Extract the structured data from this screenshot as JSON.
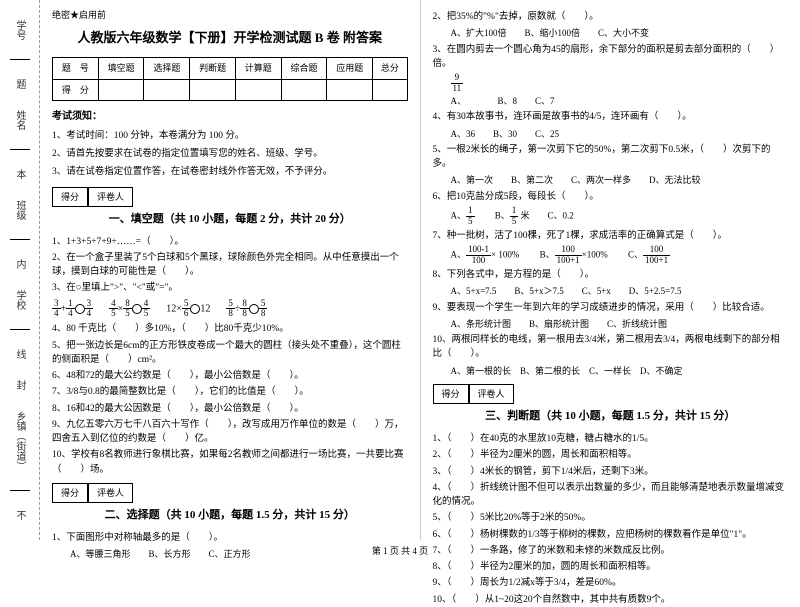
{
  "margin": {
    "labels": [
      "学号",
      "姓名",
      "班级",
      "学校",
      "乡镇（街道）"
    ],
    "cut": [
      "题",
      "本",
      "内",
      "线",
      "封",
      "不"
    ]
  },
  "secret": "绝密★启用前",
  "title": "人教版六年级数学【下册】开学检测试题 B 卷 附答案",
  "scoreTable": {
    "header": [
      "题　号",
      "填空题",
      "选择题",
      "判断题",
      "计算题",
      "综合题",
      "应用题",
      "总分"
    ],
    "row": [
      "得　分",
      "",
      "",
      "",
      "",
      "",
      "",
      ""
    ]
  },
  "noticeHdr": "考试须知：",
  "notices": [
    "1、考试时间：100 分钟，本卷满分为 100 分。",
    "2、请首先按要求在试卷的指定位置填写您的姓名、班级、学号。",
    "3、请在试卷指定位置作答，在试卷密封线外作答无效，不予评分。"
  ],
  "sectionBox": {
    "c1": "得分",
    "c2": "评卷人"
  },
  "sec1": {
    "title": "一、填空题（共 10 小题，每题 2 分，共计 20 分）",
    "q1": "1、1+3+5+7+9+……=（　　）。",
    "q2": "2、在一个盒子里装了5个白球和5个黑球，球除颜色外完全相同。从中任意摸出一个球，摸到白球的可能性是（　　）。",
    "q3": "3、在○里填上\">\"、\"<\"或\"=\"。",
    "q4": "4、80 千克比（　　）多10%，（　　）比80千克少10%。",
    "q5": "5、把一张边长是6cm的正方形铁皮卷成一个最大的圆柱（接头处不重叠），这个圆柱的侧面积是（　　）cm²。",
    "q6": "6、48和72的最大公约数是（　　），最小公倍数是（　　）。",
    "q7": "7、3/8与0.8的最简整数比是（　　），它们的比值是（　　）。",
    "q8": "8、16和42的最大公因数是（　　），最小公倍数是（　　）。",
    "q9": "9、九亿五零六万七千八百六十写作（　　），改写成用万作单位的数是（　　）万，四舍五入到亿位的约数是（　　）亿。",
    "q10": "10、学校有8名教师进行象棋比赛，如果每2名教师之间都进行一场比赛，一共要比赛（　　）场。"
  },
  "sec2": {
    "title": "二、选择题（共 10 小题，每题 1.5 分，共计 15 分）",
    "q1": "1、下面图形中对称轴最多的是（　　）。",
    "q1opts": "A、等腰三角形　　B、长方形　　C、正方形",
    "q2": "2、把35%的\"%\"去掉，原数就（　　）。",
    "q2opts": "A、扩大100倍　　B、缩小100倍　　C、大小不变",
    "q3": "3、在圆内剪去一个圆心角为45的扇形，余下部分的面积是剪去部分面积的（　　）倍。",
    "q3opts": "A、　　　　B、8　　C、7",
    "q4": "4、有30本故事书，连环画是故事书的4/5，连环画有（　　）。",
    "q4opts": "A、36　　B、30　　C、25",
    "q5": "5、一根2米长的绳子，第一次剪下它的50%，第二次剪下0.5米，（　　）次剪下的多。",
    "q5opts": "A、第一次　　B、第二次　　C、两次一样多　　D、无法比较",
    "q6": "6、把10克盐分成5段，每段长（　　）。",
    "q6a": "A、",
    "q6b": "　　B、",
    "q6c": "米　　C、0.2",
    "q7": "7、种一批树，活了100棵，死了1棵，求成活率的正确算式是（　　）。",
    "q7a": "A、",
    "q7b": "　　B、",
    "q7c": "　　C、",
    "q8": "8、下列各式中，是方程的是（　　）。",
    "q8opts": "A、5+x=7.5　　B、5+x＞7.5　　C、5+x　　D、5+2.5=7.5",
    "q9": "9、要表现一个学生一年到六年的学习成绩进步的情况，采用（　　）比较合适。",
    "q9opts": "A、条形统计图　　B、扇形统计图　　C、折线统计图",
    "q10": "10、两根同样长的电线，第一根用去3/4米，第二根用去3/4，两根电线剩下的部分相比（　　）。",
    "q10opts": "A、第一根的长　B、第二根的长　C、一样长　D、不确定"
  },
  "sec3": {
    "title": "三、判断题（共 10 小题，每题 1.5 分，共计 15 分）",
    "q1": "1、（　　）在40克的水里放10克糖，糖占糖水的1/5。",
    "q2": "2、（　　）半径为2厘米的圆，周长和面积相等。",
    "q3": "3、（　　）4米长的钢管，剪下1/4米后，还剩下3米。",
    "q4": "4、（　　）折线统计图不但可以表示出数量的多少，而且能够清楚地表示数量增减变化的情况。",
    "q5": "5、（　　）5米比20%等于2米的50%。",
    "q6": "6、（　　）杨树棵数的1/3等于柳树的棵数，应把杨树的棵数看作是单位\"1\"。",
    "q7": "7、（　　）一条路，修了的米数和未修的米数成反比例。",
    "q8": "8、（　　）半径为2厘米的加，圆的周长和面积相等。",
    "q9": "9、（　　）周长为1/2减x等于3/4，差是60%。",
    "q10": "10、（　　）从1~20这20个自然数中，其中共有质数9个。"
  },
  "fracData": {
    "f9_11": {
      "n": "9",
      "d": "11"
    },
    "f3_4": {
      "n": "3",
      "d": "4"
    },
    "f1_4": {
      "n": "1",
      "d": "4"
    },
    "f4_5": {
      "n": "4",
      "d": "5"
    },
    "f8_5": {
      "n": "8",
      "d": "5"
    },
    "f5_6": {
      "n": "5",
      "d": "6"
    },
    "f5_8": {
      "n": "5",
      "d": "8"
    },
    "f8_8": {
      "n": "8",
      "d": "8"
    },
    "f1_5": {
      "n": "1",
      "d": "5"
    },
    "f100_1": {
      "n": "100-1",
      "d": "100"
    },
    "f100_2": {
      "n": "100",
      "d": "100+1"
    },
    "f100_3": {
      "n": "100",
      "d": "100+1"
    }
  },
  "ops": {
    "x100": "× 100%",
    "x100b": "×100%",
    "twelve": "12×",
    "o12": "12"
  },
  "footer": "第 1 页 共 4 页"
}
